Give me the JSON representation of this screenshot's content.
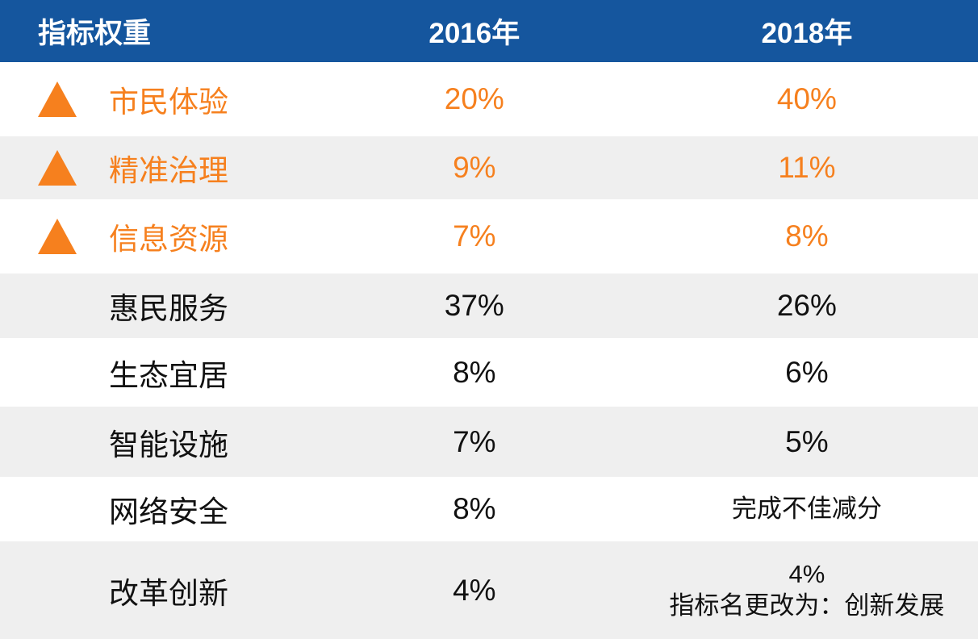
{
  "chart_data": {
    "type": "table",
    "title": "指标权重",
    "columns": [
      "指标权重",
      "2016年",
      "2018年"
    ],
    "rows": [
      {
        "indicator": "市民体验",
        "y2016": "20%",
        "y2018": "40%",
        "highlighted": true,
        "trend_icon": "up-triangle"
      },
      {
        "indicator": "精准治理",
        "y2016": "9%",
        "y2018": "11%",
        "highlighted": true,
        "trend_icon": "up-triangle"
      },
      {
        "indicator": "信息资源",
        "y2016": "7%",
        "y2018": "8%",
        "highlighted": true,
        "trend_icon": "up-triangle"
      },
      {
        "indicator": "惠民服务",
        "y2016": "37%",
        "y2018": "26%",
        "highlighted": false
      },
      {
        "indicator": "生态宜居",
        "y2016": "8%",
        "y2018": "6%",
        "highlighted": false
      },
      {
        "indicator": "智能设施",
        "y2016": "7%",
        "y2018": "5%",
        "highlighted": false
      },
      {
        "indicator": "网络安全",
        "y2016": "8%",
        "y2018": "完成不佳减分",
        "highlighted": false,
        "y2018_is_text_note": true
      },
      {
        "indicator": "改革创新",
        "y2016": "4%",
        "y2018": "4%",
        "y2018_note": "指标名更改为：创新发展",
        "highlighted": false
      }
    ],
    "layout": {
      "grid": "off",
      "header_position": "top",
      "row_shading": "alternating"
    }
  },
  "colors": {
    "header_bg": "#15569E",
    "header_text": "#FFFFFF",
    "accent_orange": "#F6801E",
    "row_bg": "#FFFFFF",
    "row_alt_bg": "#EFEFEF",
    "body_text": "#111111"
  }
}
